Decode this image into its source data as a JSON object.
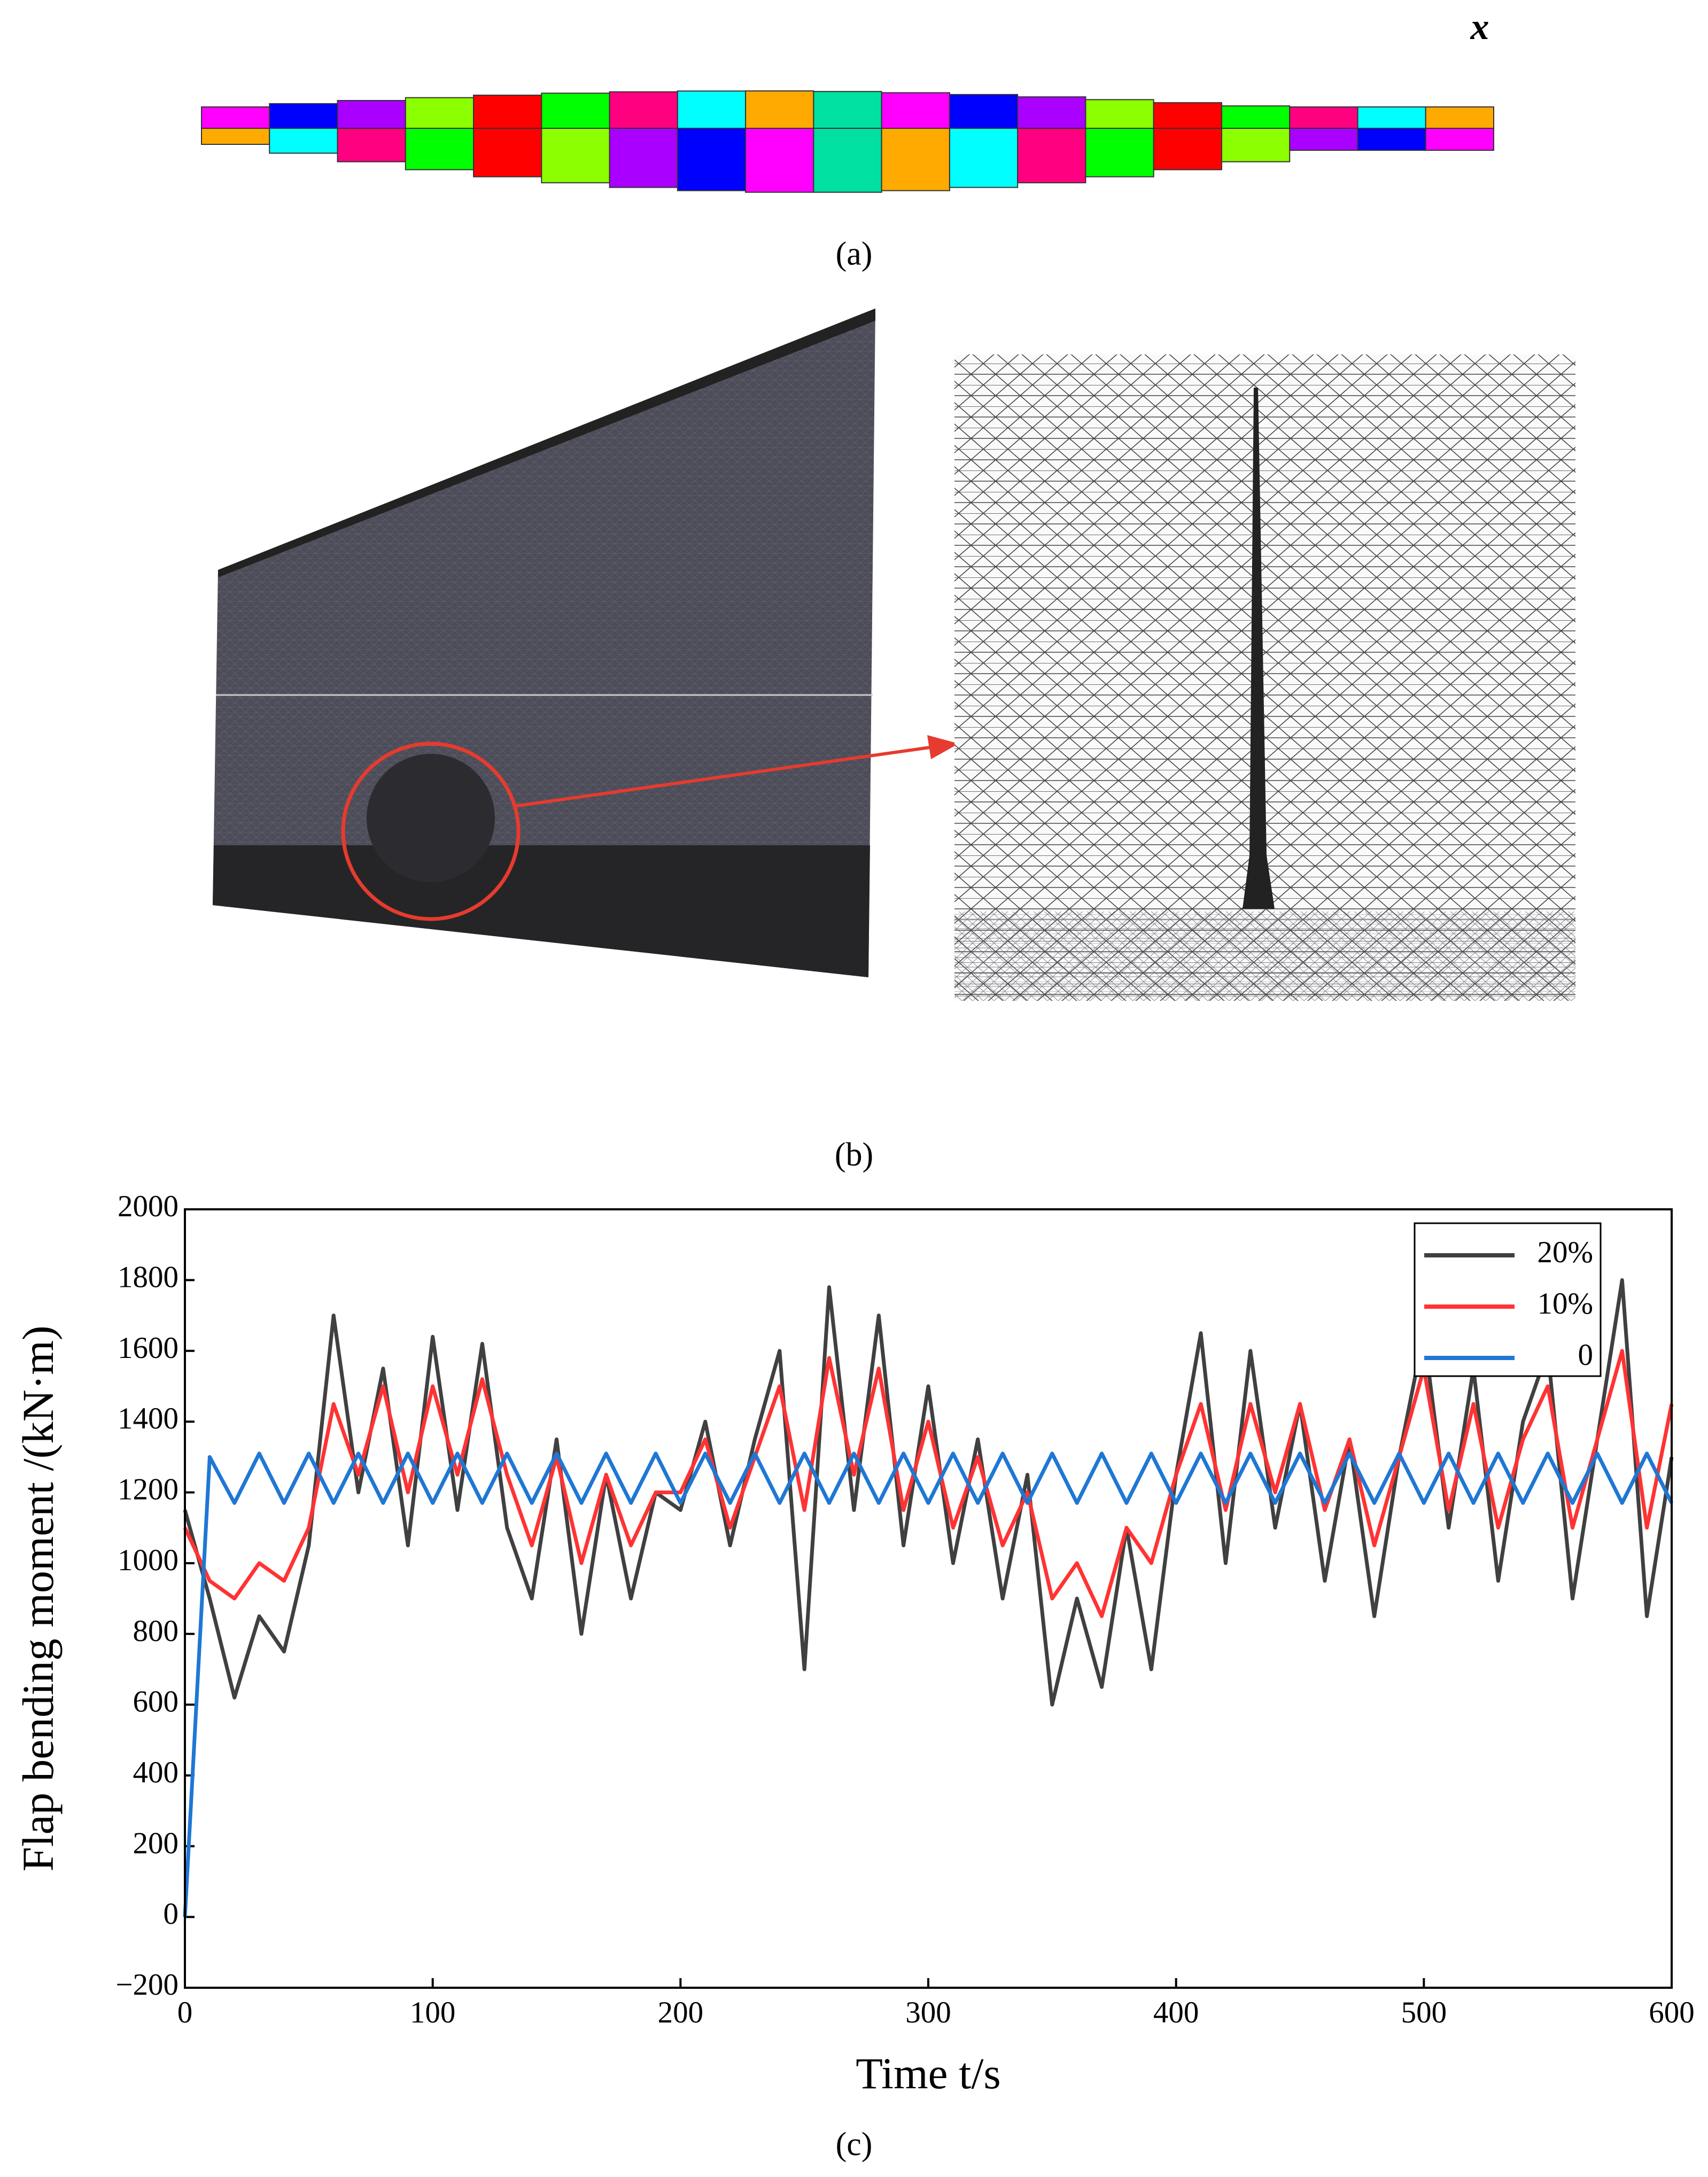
{
  "panels": {
    "a": {
      "label": "(a)",
      "axis_label": "x"
    },
    "b": {
      "label": "(b)"
    },
    "c": {
      "label": "(c)"
    }
  },
  "chart_data": {
    "type": "line",
    "x_label": "Time  t/s",
    "y_label": "Flap bending moment  /(kN·m)",
    "x": [
      0,
      10,
      20,
      30,
      40,
      50,
      60,
      70,
      80,
      90,
      100,
      110,
      120,
      130,
      140,
      150,
      160,
      170,
      180,
      190,
      200,
      210,
      220,
      230,
      240,
      250,
      260,
      270,
      280,
      290,
      300,
      310,
      320,
      330,
      340,
      350,
      360,
      370,
      380,
      390,
      400,
      410,
      420,
      430,
      440,
      450,
      460,
      470,
      480,
      490,
      500,
      510,
      520,
      530,
      540,
      550,
      560,
      570,
      580,
      590,
      600
    ],
    "series": [
      {
        "name": "20%",
        "color": "#404040",
        "values": [
          1150,
          900,
          620,
          850,
          750,
          1050,
          1700,
          1200,
          1550,
          1050,
          1640,
          1150,
          1620,
          1100,
          900,
          1350,
          800,
          1250,
          900,
          1200,
          1150,
          1400,
          1050,
          1350,
          1600,
          700,
          1780,
          1150,
          1700,
          1050,
          1500,
          1000,
          1350,
          900,
          1250,
          600,
          900,
          650,
          1100,
          700,
          1250,
          1650,
          1000,
          1600,
          1100,
          1450,
          950,
          1350,
          850,
          1300,
          1650,
          1100,
          1550,
          950,
          1400,
          1600,
          900,
          1350,
          1800,
          850,
          1300
        ]
      },
      {
        "name": "10%",
        "color": "#ff3333",
        "values": [
          1100,
          950,
          900,
          1000,
          950,
          1100,
          1450,
          1250,
          1500,
          1200,
          1500,
          1250,
          1520,
          1250,
          1050,
          1300,
          1000,
          1250,
          1050,
          1200,
          1200,
          1350,
          1100,
          1300,
          1500,
          1150,
          1580,
          1250,
          1550,
          1150,
          1400,
          1100,
          1300,
          1050,
          1200,
          900,
          1000,
          850,
          1100,
          1000,
          1250,
          1450,
          1150,
          1450,
          1200,
          1450,
          1150,
          1350,
          1050,
          1300,
          1550,
          1150,
          1450,
          1100,
          1350,
          1500,
          1100,
          1350,
          1600,
          1100,
          1450
        ]
      },
      {
        "name": "0",
        "color": "#1f77d4",
        "values": [
          0,
          1300,
          1170,
          1310,
          1170,
          1310,
          1170,
          1310,
          1170,
          1310,
          1170,
          1310,
          1170,
          1310,
          1170,
          1310,
          1170,
          1310,
          1170,
          1310,
          1170,
          1310,
          1170,
          1310,
          1170,
          1310,
          1170,
          1310,
          1170,
          1310,
          1170,
          1310,
          1170,
          1310,
          1170,
          1310,
          1170,
          1310,
          1170,
          1310,
          1170,
          1310,
          1170,
          1310,
          1170,
          1310,
          1170,
          1310,
          1170,
          1310,
          1170,
          1310,
          1170,
          1310,
          1170,
          1310,
          1170,
          1310,
          1170,
          1310,
          1170
        ]
      }
    ],
    "xlim": [
      0,
      600
    ],
    "xticks": [
      0,
      100,
      200,
      300,
      400,
      500,
      600
    ],
    "ylim": [
      -200,
      2000
    ],
    "yticks": [
      {
        "value": -200,
        "label": "−200"
      },
      0,
      200,
      400,
      600,
      800,
      1000,
      1200,
      1400,
      1600,
      1800,
      2000
    ],
    "legend": "top-right"
  }
}
